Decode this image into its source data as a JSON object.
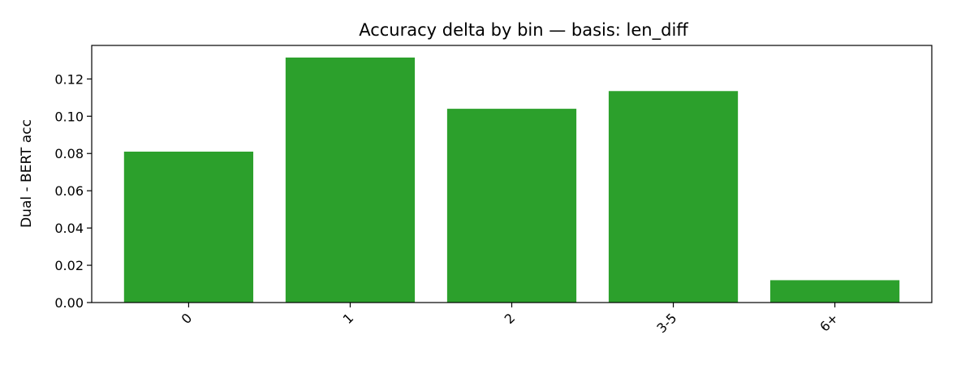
{
  "chart_data": {
    "type": "bar",
    "title": "Accuracy delta by bin — basis: len_diff",
    "xlabel": "",
    "ylabel": "Dual - BERT acc",
    "categories": [
      "0",
      "1",
      "2",
      "3-5",
      "6+"
    ],
    "values": [
      0.081,
      0.1315,
      0.104,
      0.1135,
      0.012
    ],
    "ylim": [
      0,
      0.138
    ],
    "yticks": [
      0.0,
      0.02,
      0.04,
      0.06,
      0.08,
      0.1,
      0.12
    ],
    "ytick_labels": [
      "0.00",
      "0.02",
      "0.04",
      "0.06",
      "0.08",
      "0.10",
      "0.12"
    ],
    "x_tick_rotation": 45,
    "bar_color": "#2ca02c",
    "grid": false,
    "legend": "none"
  }
}
